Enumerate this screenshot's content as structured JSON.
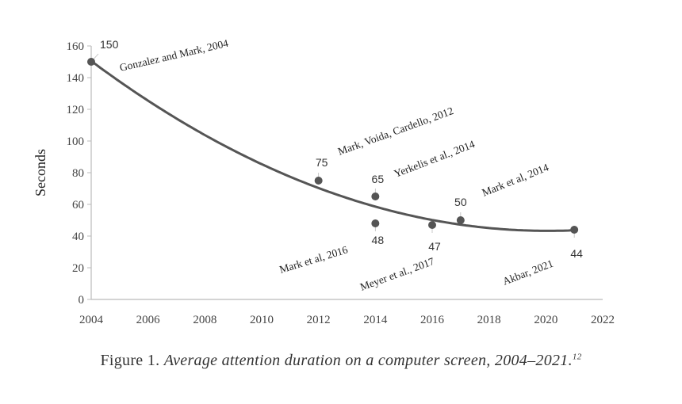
{
  "chart_data": {
    "type": "scatter",
    "title": "",
    "ylabel": "Seconds",
    "xlabel": "",
    "xlim": [
      2004,
      2022
    ],
    "ylim": [
      0,
      160
    ],
    "xticks": [
      "2004",
      "2006",
      "2008",
      "2010",
      "2012",
      "2014",
      "2016",
      "2018",
      "2020",
      "2022"
    ],
    "yticks": [
      "0",
      "20",
      "40",
      "60",
      "80",
      "100",
      "120",
      "140",
      "160"
    ],
    "grid": false,
    "trendline": "polynomial (order 2)",
    "points": [
      {
        "x": 2004,
        "y": 150,
        "label": "150",
        "source": "Gonzalez and Mark, 2004"
      },
      {
        "x": 2012,
        "y": 75,
        "label": "75",
        "source": "Mark, Voida, Cardello, 2012"
      },
      {
        "x": 2014,
        "y": 65,
        "label": "65",
        "source": "Yerkelis et al., 2014"
      },
      {
        "x": 2014,
        "y": 48,
        "label": "48",
        "source": "Mark et al, 2014"
      },
      {
        "x": 2016,
        "y": 47,
        "label": "47",
        "source": "Mark et al, 2016"
      },
      {
        "x": 2017,
        "y": 50,
        "label": "50",
        "source": "Meyer et al., 2017"
      },
      {
        "x": 2021,
        "y": 44,
        "label": "44",
        "source": "Akbar, 2021"
      }
    ],
    "colors": {
      "marker": "#555555",
      "trend": "#555555",
      "axis": "#bbbbbb"
    }
  },
  "caption": {
    "prefix": "Figure 1.",
    "text": "Average attention duration on a computer screen, 2004–2021.",
    "footnote": "12"
  }
}
